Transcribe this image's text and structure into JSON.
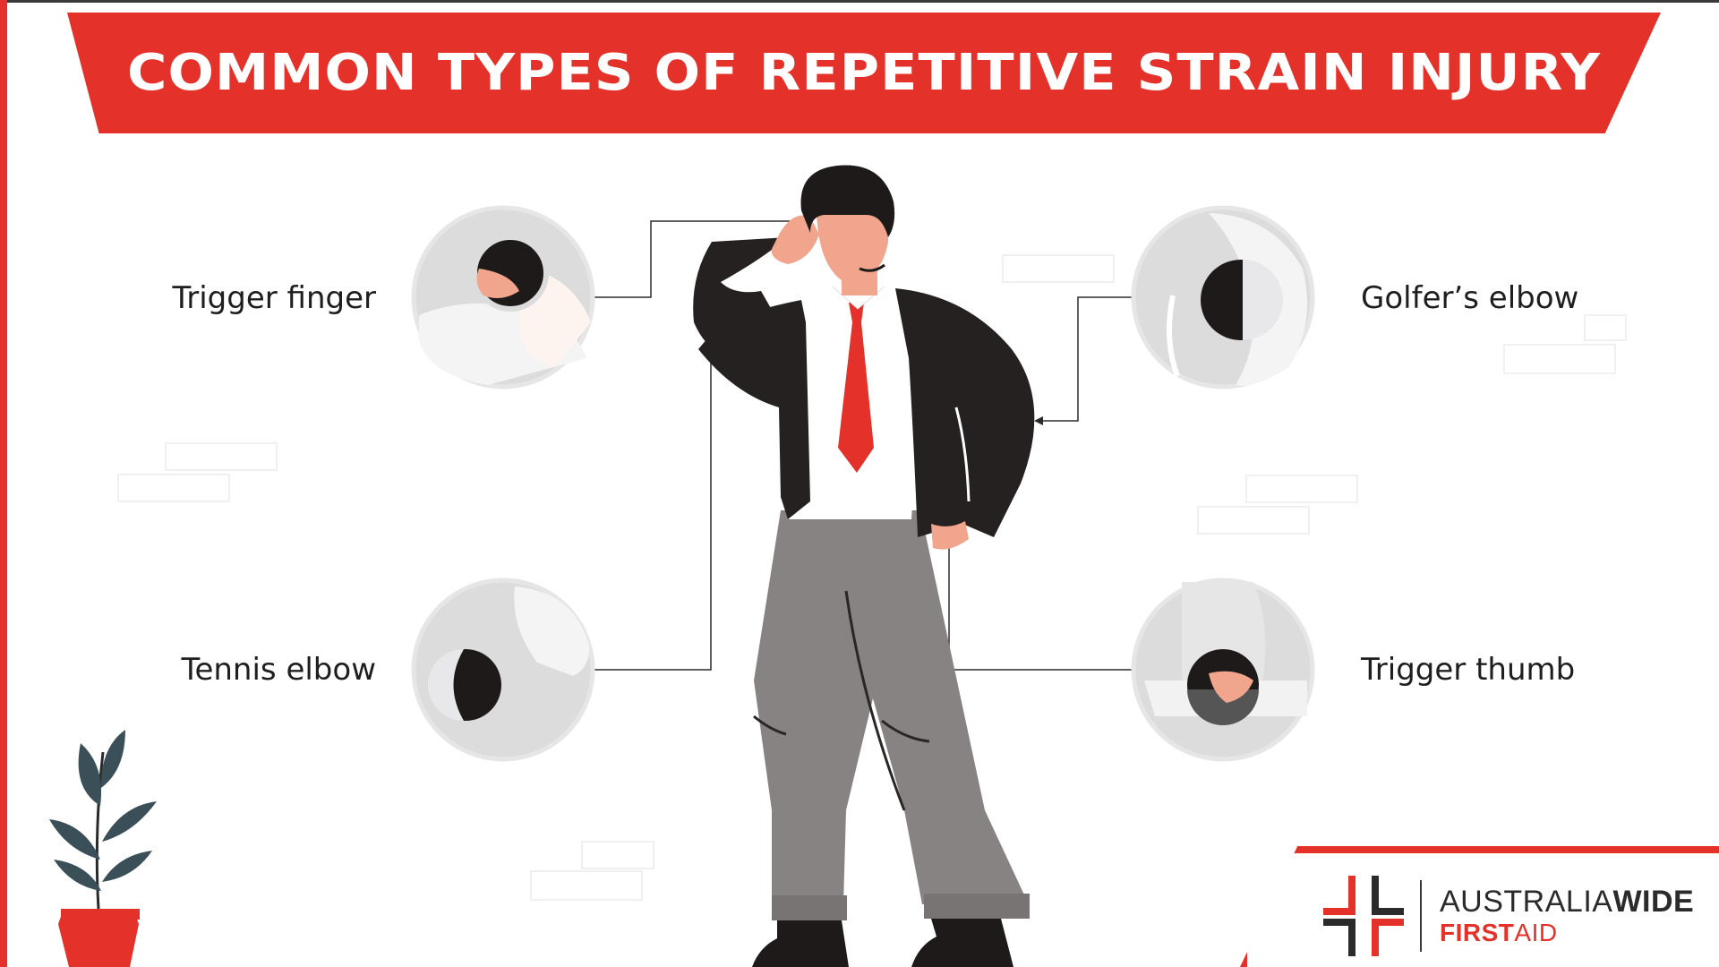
{
  "title": "COMMON TYPES OF REPETITIVE STRAIN INJURY",
  "labels": {
    "trigger_finger": "Trigger finger",
    "golfers_elbow": "Golfer’s elbow",
    "tennis_elbow": "Tennis elbow",
    "trigger_thumb": "Trigger thumb"
  },
  "logo": {
    "line1_a": "AUSTRALIA",
    "line1_b": "WIDE",
    "line2_a": "FIRST",
    "line2_b": "AID"
  },
  "colors": {
    "accent_red": "#e4322b",
    "jacket": "#262121",
    "pants": "#8a8686",
    "skin": "#f0a58c",
    "circle_fill": "#dcdcdc"
  },
  "icons": [
    "plant-icon",
    "first-aid-cross-icon"
  ]
}
